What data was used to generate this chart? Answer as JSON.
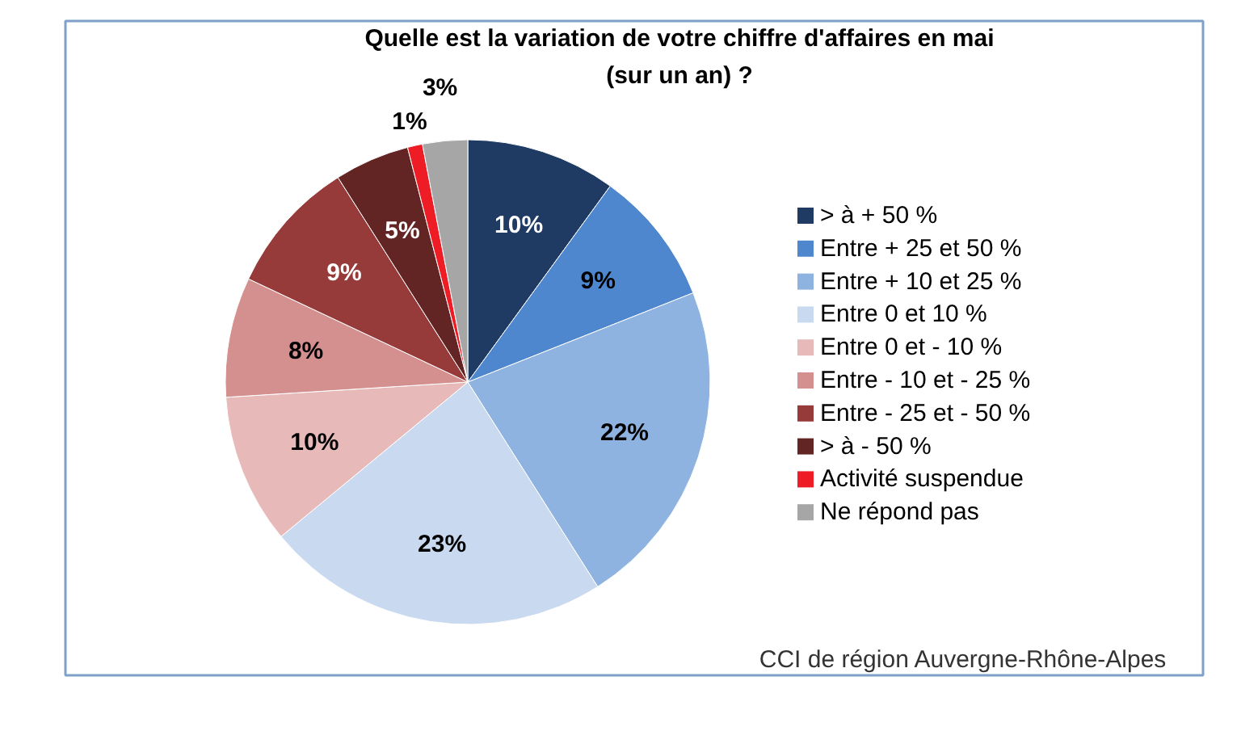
{
  "chart_data": {
    "type": "pie",
    "title": "Quelle est la variation de votre chiffre d'affaires en mai\n(sur un an) ?",
    "categories": [
      "> à + 50 %",
      "Entre + 25 et 50 %",
      "Entre + 10 et 25 %",
      "Entre 0 et 10 %",
      "Entre 0 et - 10 %",
      "Entre - 10 et - 25 %",
      "Entre - 25 et - 50 %",
      "> à - 50 %",
      "Activité suspendue",
      "Ne répond pas"
    ],
    "values": [
      10,
      9,
      22,
      23,
      10,
      8,
      9,
      5,
      1,
      3
    ],
    "colors": [
      "#1f3a63",
      "#4f87cf",
      "#8eb3e0",
      "#c9daf0",
      "#e8b9b9",
      "#d48f8f",
      "#963a3a",
      "#632424",
      "#ee1c25",
      "#a6a6a6"
    ],
    "value_labels": [
      "10%",
      "9%",
      "22%",
      "23%",
      "10%",
      "8%",
      "9%",
      "5%",
      "1%",
      "3%"
    ],
    "legend": "right",
    "annotations": [
      "CCI de région Auvergne-Rhône-Alpes"
    ]
  }
}
